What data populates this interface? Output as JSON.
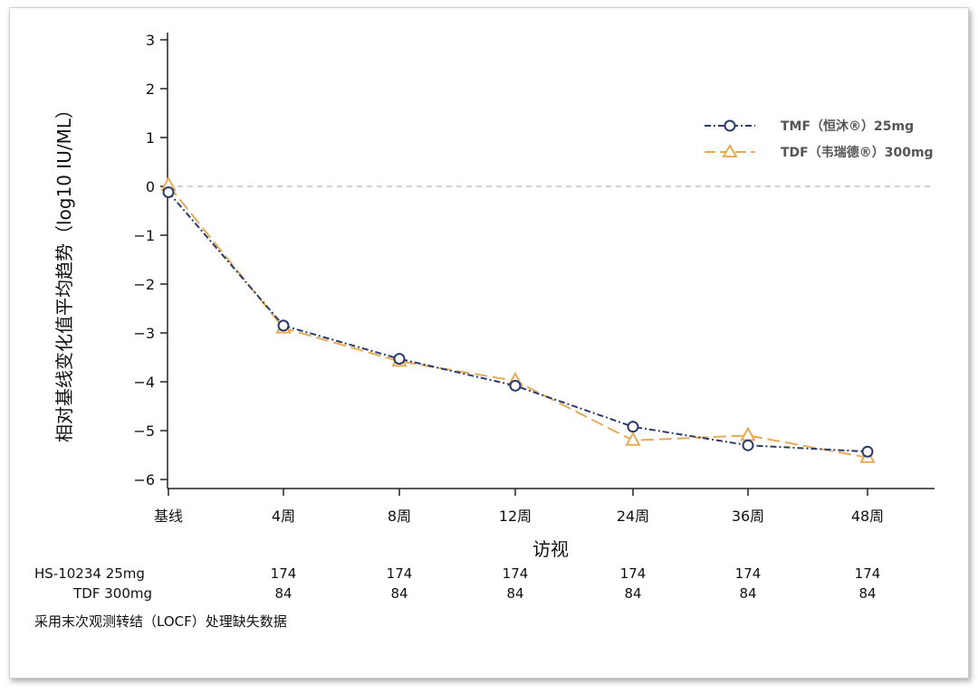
{
  "chart_data": {
    "type": "line",
    "ylabel": "相对基线变化值平均趋势（log10 IU/ML）",
    "xlabel": "访视",
    "categories": [
      "基线",
      "4周",
      "8周",
      "12周",
      "24周",
      "36周",
      "48周"
    ],
    "yticks": [
      "3",
      "2",
      "1",
      "0",
      "−1",
      "−2",
      "−3",
      "−4",
      "−5",
      "−6"
    ],
    "ytick_values": [
      3,
      2,
      1,
      0,
      -1,
      -2,
      -3,
      -4,
      -5,
      -6
    ],
    "ylim": [
      -6.25,
      3.1
    ],
    "reference_line": 0,
    "legend_position": "top-right",
    "series": [
      {
        "name": "TMF（恒沐®）25mg",
        "values": [
          -0.12,
          -2.85,
          -3.53,
          -4.08,
          -4.92,
          -5.3,
          -5.43
        ],
        "color": "#2b3a6b",
        "marker": "circle",
        "line_style": "dash-dot"
      },
      {
        "name": "TDF（韦瑞德®）300mg",
        "values": [
          0.02,
          -2.9,
          -3.58,
          -3.98,
          -5.2,
          -5.1,
          -5.55
        ],
        "color": "#e7ab55",
        "marker": "triangle",
        "line_style": "long-dash"
      }
    ],
    "at_risk_table": {
      "rows": [
        {
          "label": "HS-10234 25mg",
          "counts": [
            "174",
            "174",
            "174",
            "174",
            "174",
            "174"
          ]
        },
        {
          "label": "TDF 300mg",
          "counts": [
            "84",
            "84",
            "84",
            "84",
            "84",
            "84"
          ]
        }
      ]
    },
    "footnote": "采用末次观测转结（LOCF）处理缺失数据"
  }
}
